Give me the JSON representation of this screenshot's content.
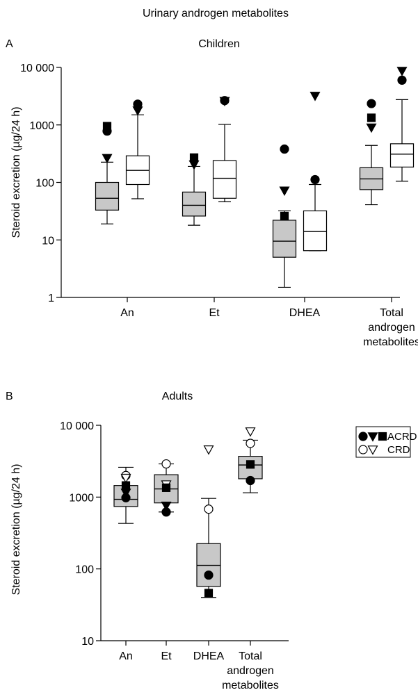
{
  "figure_title": "Urinary androgen metabolites",
  "legend": {
    "acrd_label": "ACRD",
    "crd_label": "CRD"
  },
  "chart_data": [
    {
      "panel": "A",
      "title": "Children",
      "type": "box",
      "scale": "log",
      "ylabel": "Steroid excretion (µg/24 h)",
      "ylim": [
        1,
        10000
      ],
      "yticks": [
        "1",
        "10",
        "100",
        "1000",
        "10 000"
      ],
      "categories": [
        {
          "name": "An",
          "lines": [
            "An"
          ]
        },
        {
          "name": "Et",
          "lines": [
            "Et"
          ]
        },
        {
          "name": "Total androgen metabolites",
          "lines": [
            "Total",
            "androgen",
            "metabolites"
          ]
        },
        {
          "name": "DHEA",
          "lines": [
            "DHEA"
          ]
        }
      ],
      "groups": [
        {
          "category": "An",
          "series": "ACRD",
          "fill": "#c8c8c8",
          "min": 19,
          "q1": 33,
          "median": 53,
          "q3": 100,
          "max": 225,
          "outliers": [
            {
              "v": 950,
              "m": "square"
            },
            {
              "v": 780,
              "m": "circle"
            },
            {
              "v": 265,
              "m": "triangle"
            }
          ]
        },
        {
          "category": "An",
          "series": "CRD",
          "fill": "#ffffff",
          "min": 52,
          "q1": 92,
          "median": 162,
          "q3": 290,
          "max": 1500,
          "outliers": [
            {
              "v": 2300,
              "m": "circle"
            },
            {
              "v": 1780,
              "m": "triangle"
            }
          ]
        },
        {
          "category": "Et",
          "series": "ACRD",
          "fill": "#c8c8c8",
          "min": 18,
          "q1": 26,
          "median": 40,
          "q3": 68,
          "max": 190,
          "outliers": [
            {
              "v": 270,
              "m": "square"
            },
            {
              "v": 205,
              "m": "triangle"
            }
          ]
        },
        {
          "category": "Et",
          "series": "CRD",
          "fill": "#ffffff",
          "min": 46,
          "q1": 53,
          "median": 118,
          "q3": 240,
          "max": 1020,
          "outliers": [
            {
              "v": 2650,
              "m": "circle"
            },
            {
              "v": 2600,
              "m": "triangle"
            }
          ]
        },
        {
          "category": "DHEA",
          "series": "ACRD",
          "fill": "#c8c8c8",
          "min": 1.5,
          "q1": 5,
          "median": 9.5,
          "q3": 22,
          "max": 32,
          "outliers": [
            {
              "v": 380,
              "m": "circle"
            },
            {
              "v": 72,
              "m": "triangle"
            },
            {
              "v": 26,
              "m": "square"
            }
          ]
        },
        {
          "category": "DHEA",
          "series": "CRD",
          "fill": "#ffffff",
          "min": 6.5,
          "q1": 6.5,
          "median": 14,
          "q3": 32,
          "max": 92,
          "outliers": [
            {
              "v": 3200,
              "m": "triangle"
            },
            {
              "v": 112,
              "m": "circle"
            }
          ]
        },
        {
          "category": "Total androgen metabolites",
          "series": "ACRD",
          "fill": "#c8c8c8",
          "min": 41,
          "q1": 75,
          "median": 115,
          "q3": 180,
          "max": 440,
          "outliers": [
            {
              "v": 2350,
              "m": "circle"
            },
            {
              "v": 1330,
              "m": "square"
            },
            {
              "v": 900,
              "m": "triangle"
            }
          ]
        },
        {
          "category": "Total androgen metabolites",
          "series": "CRD",
          "fill": "#ffffff",
          "min": 105,
          "q1": 185,
          "median": 310,
          "q3": 470,
          "max": 2750,
          "outliers": [
            {
              "v": 8700,
              "m": "triangle"
            },
            {
              "v": 6000,
              "m": "circle"
            }
          ]
        }
      ]
    },
    {
      "panel": "B",
      "title": "Adults",
      "type": "box",
      "scale": "log",
      "ylabel": "Steroid excretion (µg/24 h)",
      "ylim": [
        10,
        10000
      ],
      "yticks": [
        "10",
        "100",
        "1000",
        "10 000"
      ],
      "categories": [
        {
          "name": "An",
          "lines": [
            "An"
          ]
        },
        {
          "name": "Et",
          "lines": [
            "Et"
          ]
        },
        {
          "name": "DHEA",
          "lines": [
            "DHEA"
          ]
        },
        {
          "name": "Total androgen metabolites",
          "lines": [
            "Total",
            "androgen",
            "metabolites"
          ]
        }
      ],
      "groups": [
        {
          "category": "An",
          "series": "ACRD",
          "fill": "#c8c8c8",
          "min": 430,
          "q1": 740,
          "median": 930,
          "q3": 1450,
          "max": 2600,
          "points": [
            {
              "v": 2000,
              "m": "circle_open"
            },
            {
              "v": 1850,
              "m": "triangle_open"
            },
            {
              "v": 1450,
              "m": "square"
            },
            {
              "v": 1150,
              "m": "triangle"
            },
            {
              "v": 980,
              "m": "circle"
            }
          ]
        },
        {
          "category": "Et",
          "series": "ACRD",
          "fill": "#c8c8c8",
          "min": 620,
          "q1": 830,
          "median": 1300,
          "q3": 2050,
          "max": 2900,
          "points": [
            {
              "v": 2900,
              "m": "circle_open"
            },
            {
              "v": 1500,
              "m": "triangle_open"
            },
            {
              "v": 1350,
              "m": "square"
            },
            {
              "v": 760,
              "m": "triangle"
            },
            {
              "v": 620,
              "m": "circle"
            }
          ]
        },
        {
          "category": "DHEA",
          "series": "ACRD",
          "fill": "#c8c8c8",
          "min": 40,
          "q1": 57,
          "median": 112,
          "q3": 225,
          "max": 960,
          "points": [
            {
              "v": 4600,
              "m": "triangle_open"
            },
            {
              "v": 680,
              "m": "circle_open"
            },
            {
              "v": 82,
              "m": "circle"
            },
            {
              "v": 46,
              "m": "square"
            }
          ]
        },
        {
          "category": "Total androgen metabolites",
          "series": "ACRD",
          "fill": "#c8c8c8",
          "min": 1150,
          "q1": 1800,
          "median": 2800,
          "q3": 3700,
          "max": 6200,
          "points": [
            {
              "v": 8200,
              "m": "triangle_open"
            },
            {
              "v": 5600,
              "m": "circle_open"
            },
            {
              "v": 2850,
              "m": "square"
            },
            {
              "v": 1700,
              "m": "circle"
            }
          ]
        }
      ]
    }
  ]
}
